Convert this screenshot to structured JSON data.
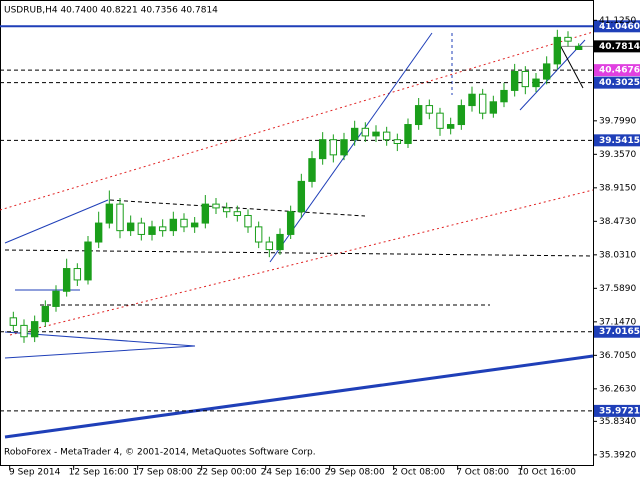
{
  "chart_data": {
    "type": "candlestick",
    "title": "USDRUB,H4  40.7400 40.8221 40.7356 40.7814",
    "footer": "RoboForex - MetaTrader 4, © 2001-2014, MetaQuotes Software Corp.",
    "categories": [
      null,
      null,
      "9 Sep 2014",
      null,
      null,
      null,
      null,
      null,
      "12 Sep 16:00",
      null,
      null,
      null,
      null,
      null,
      "17 Sep 08:00",
      null,
      null,
      null,
      null,
      null,
      "22 Sep 00:00",
      null,
      null,
      null,
      null,
      null,
      "24 Sep 16:00",
      null,
      null,
      null,
      null,
      null,
      "29 Sep 08:00",
      null,
      null,
      null,
      null,
      null,
      "2 Oct 08:00",
      null,
      null,
      null,
      null,
      null,
      "7 Oct 08:00",
      null,
      null,
      null,
      null,
      null,
      "10 Oct 16:00",
      null,
      null,
      null
    ],
    "open": [
      37.2,
      37.1,
      36.95,
      37.15,
      37.35,
      37.55,
      37.85,
      37.7,
      38.2,
      38.45,
      38.7,
      38.35,
      38.45,
      38.3,
      38.4,
      38.35,
      38.5,
      38.4,
      38.45,
      38.7,
      38.65,
      38.6,
      38.55,
      38.4,
      38.2,
      38.1,
      38.3,
      38.6,
      39.0,
      39.3,
      39.55,
      39.35,
      39.55,
      39.7,
      39.6,
      39.65,
      39.55,
      39.5,
      39.75,
      40.0,
      39.9,
      39.7,
      39.75,
      40.0,
      40.15,
      39.9,
      40.05,
      40.2,
      40.45,
      40.25,
      40.35,
      40.55,
      40.9,
      40.74
    ],
    "high": [
      37.28,
      37.18,
      37.23,
      37.43,
      37.63,
      37.98,
      37.92,
      38.28,
      38.6,
      38.88,
      38.78,
      38.55,
      38.52,
      38.48,
      38.5,
      38.6,
      38.58,
      38.53,
      38.82,
      38.78,
      38.72,
      38.68,
      38.63,
      38.47,
      38.27,
      38.38,
      38.68,
      39.1,
      39.4,
      39.65,
      39.62,
      39.64,
      39.8,
      39.78,
      39.74,
      39.72,
      39.63,
      39.83,
      40.1,
      40.08,
      39.97,
      39.84,
      40.08,
      40.25,
      40.22,
      40.13,
      40.3,
      40.55,
      40.52,
      40.43,
      40.65,
      41.0,
      40.98,
      40.8221
    ],
    "low": [
      37.02,
      36.87,
      36.88,
      37.08,
      37.28,
      37.48,
      37.62,
      37.64,
      38.12,
      38.38,
      38.25,
      38.28,
      38.22,
      38.22,
      38.27,
      38.28,
      38.33,
      38.32,
      38.38,
      38.57,
      38.52,
      38.47,
      38.32,
      38.12,
      38.0,
      38.03,
      38.24,
      38.52,
      38.92,
      39.22,
      39.25,
      39.28,
      39.47,
      39.52,
      39.52,
      39.47,
      39.4,
      39.44,
      39.68,
      39.82,
      39.6,
      39.62,
      39.68,
      39.92,
      39.82,
      39.84,
      39.98,
      40.12,
      40.15,
      40.18,
      40.28,
      40.48,
      40.78,
      40.7356
    ],
    "close": [
      37.1,
      36.95,
      37.15,
      37.35,
      37.55,
      37.85,
      37.7,
      38.2,
      38.45,
      38.7,
      38.35,
      38.45,
      38.3,
      38.4,
      38.35,
      38.5,
      38.4,
      38.45,
      38.7,
      38.65,
      38.6,
      38.55,
      38.4,
      38.2,
      38.1,
      38.3,
      38.6,
      39.0,
      39.3,
      39.55,
      39.35,
      39.55,
      39.7,
      39.6,
      39.65,
      39.55,
      39.5,
      39.75,
      40.0,
      39.9,
      39.7,
      39.75,
      40.0,
      40.15,
      39.9,
      40.05,
      40.2,
      40.45,
      40.25,
      40.35,
      40.55,
      40.9,
      40.85,
      40.7814
    ],
    "up_color": "#1a9e1a",
    "down_color": "#ffffff",
    "wick_color": "#1a9e1a",
    "ylim": [
      35.245,
      41.393
    ],
    "yticks": [
      {
        "value": 41.125,
        "label": "41.1250"
      },
      {
        "value": 39.799,
        "label": "39.7990"
      },
      {
        "value": 39.357,
        "label": "39.3570"
      },
      {
        "value": 38.915,
        "label": "38.9150"
      },
      {
        "value": 38.473,
        "label": "38.4730"
      },
      {
        "value": 38.031,
        "label": "38.0310"
      },
      {
        "value": 37.589,
        "label": "37.5890"
      },
      {
        "value": 37.147,
        "label": "37.1470"
      },
      {
        "value": 36.705,
        "label": "36.7050"
      },
      {
        "value": 36.263,
        "label": "36.2630"
      },
      {
        "value": 35.834,
        "label": "35.8340"
      },
      {
        "value": 35.392,
        "label": "35.3920"
      }
    ],
    "levels": [
      {
        "value": 41.046,
        "label": "41.0460",
        "color": "#1f3fb8",
        "style": "solid"
      },
      {
        "value": 40.4676,
        "color": "#e040e0",
        "style": "dashed"
      },
      {
        "value": 40.3025,
        "color": "#1f3fb8",
        "style": "dashed"
      },
      {
        "value": 39.5415,
        "color": "#1f3fb8",
        "style": "dashed"
      },
      {
        "value": 37.0165,
        "color": "#1f3fb8",
        "style": "dashed"
      },
      {
        "value": 35.9721,
        "color": "#1f3fb8",
        "style": "dashed"
      }
    ],
    "current_color": "#000000"
  }
}
